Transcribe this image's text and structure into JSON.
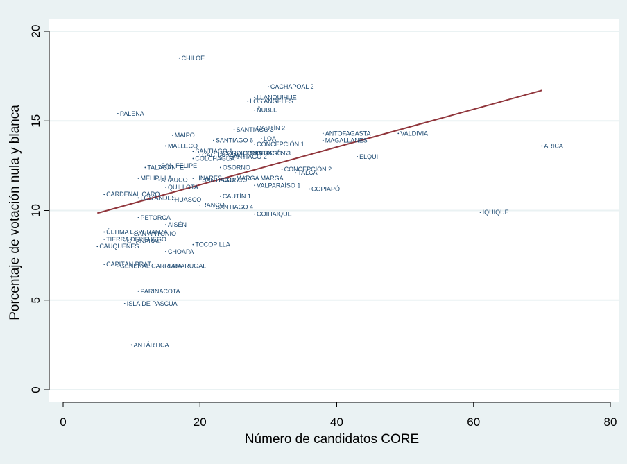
{
  "chart_data": {
    "type": "scatter",
    "xlabel": "Número de candidatos CORE",
    "ylabel": "Porcentaje de votación nula y blanca",
    "xlim": [
      0,
      80
    ],
    "ylim": [
      0,
      20
    ],
    "x_ticks": [
      "0",
      "20",
      "40",
      "60",
      "80"
    ],
    "y_ticks": [
      "0",
      "5",
      "10",
      "15",
      "20"
    ],
    "grid": "horizontal",
    "colors": {
      "background": "#eaf2f3",
      "plot_area": "#ffffff",
      "gridline": "#eaf2f3",
      "markers": "#1a476f",
      "fit_line": "#90353b"
    },
    "points": [
      {
        "label": "CHILOÉ",
        "x": 17,
        "y": 18.5
      },
      {
        "label": "CACHAPOAL 2",
        "x": 30,
        "y": 16.9
      },
      {
        "label": "LLANQUIHUE",
        "x": 28,
        "y": 16.3
      },
      {
        "label": "LOS ANGELES",
        "x": 27,
        "y": 16.1
      },
      {
        "label": "ÑUBLE",
        "x": 28,
        "y": 15.6
      },
      {
        "label": "PALENA",
        "x": 8,
        "y": 15.4
      },
      {
        "label": "CAUTÍN 2",
        "x": 28,
        "y": 14.6
      },
      {
        "label": "SANTIAGO 3",
        "x": 25,
        "y": 14.5
      },
      {
        "label": "ANTOFAGASTA",
        "x": 38,
        "y": 14.3
      },
      {
        "label": "VALDIVIA",
        "x": 49,
        "y": 14.3
      },
      {
        "label": "MAIPO",
        "x": 16,
        "y": 14.2
      },
      {
        "label": "LOA",
        "x": 29,
        "y": 14.0
      },
      {
        "label": "MAGALLANES",
        "x": 38,
        "y": 13.9
      },
      {
        "label": "SANTIAGO 6",
        "x": 22,
        "y": 13.9
      },
      {
        "label": "CONCEPCIÓN 1",
        "x": 28,
        "y": 13.7
      },
      {
        "label": "ARICA",
        "x": 70,
        "y": 13.6
      },
      {
        "label": "MALLECO",
        "x": 15,
        "y": 13.6
      },
      {
        "label": "SANTIAGO 1",
        "x": 19,
        "y": 13.3
      },
      {
        "label": "CORDILLERA",
        "x": 23,
        "y": 13.2
      },
      {
        "label": "CONCEPCIÓN 3",
        "x": 26,
        "y": 13.2
      },
      {
        "label": "SANTIAGO 5",
        "x": 27,
        "y": 13.2
      },
      {
        "label": "CACHAPOAL 1",
        "x": 20,
        "y": 13.1
      },
      {
        "label": "SANTIAGO 2",
        "x": 24,
        "y": 13.0
      },
      {
        "label": "ELQUI",
        "x": 43,
        "y": 13.0
      },
      {
        "label": "COLCHAGUA",
        "x": 19,
        "y": 12.9
      },
      {
        "label": "SAN FELIPE",
        "x": 14,
        "y": 12.5
      },
      {
        "label": "OSORNO",
        "x": 23,
        "y": 12.4
      },
      {
        "label": "TALAGANTE",
        "x": 12,
        "y": 12.4
      },
      {
        "label": "CONCEPCIÓN 2",
        "x": 32,
        "y": 12.3
      },
      {
        "label": "TALCA",
        "x": 34,
        "y": 12.1
      },
      {
        "label": "MELIPILLA",
        "x": 11,
        "y": 11.8
      },
      {
        "label": "LINARES",
        "x": 19,
        "y": 11.8
      },
      {
        "label": "ARAUCO",
        "x": 14,
        "y": 11.7
      },
      {
        "label": "SANTIAGO 7",
        "x": 20,
        "y": 11.7
      },
      {
        "label": "MARGA MARGA",
        "x": 25,
        "y": 11.8
      },
      {
        "label": "CURICÓ",
        "x": 23,
        "y": 11.7
      },
      {
        "label": "VALPARAÍSO 1",
        "x": 28,
        "y": 11.4
      },
      {
        "label": "QUILLOTA",
        "x": 15,
        "y": 11.3
      },
      {
        "label": "COPIAPÓ",
        "x": 36,
        "y": 11.2
      },
      {
        "label": "CARDENAL CARO",
        "x": 6,
        "y": 10.9
      },
      {
        "label": "LOS ANDES",
        "x": 11,
        "y": 10.7
      },
      {
        "label": "CAUTÍN 1",
        "x": 23,
        "y": 10.8
      },
      {
        "label": "HUASCO",
        "x": 16,
        "y": 10.6
      },
      {
        "label": "RANCO",
        "x": 20,
        "y": 10.3
      },
      {
        "label": "SANTIAGO 4",
        "x": 22,
        "y": 10.2
      },
      {
        "label": "IQUIQUE",
        "x": 61,
        "y": 9.9
      },
      {
        "label": "COIHAIQUE",
        "x": 28,
        "y": 9.8
      },
      {
        "label": "PETORCA",
        "x": 11,
        "y": 9.6
      },
      {
        "label": "AISÉN",
        "x": 15,
        "y": 9.2
      },
      {
        "label": "ÚLTIMA ESPERANZA",
        "x": 6,
        "y": 8.8
      },
      {
        "label": "SAN ANTONIO",
        "x": 10,
        "y": 8.7
      },
      {
        "label": "TIERRA DEL FUEGO",
        "x": 6,
        "y": 8.4
      },
      {
        "label": "CHAÑARAL",
        "x": 9,
        "y": 8.3
      },
      {
        "label": "TOCOPILLA",
        "x": 19,
        "y": 8.1
      },
      {
        "label": "CAUQUENES",
        "x": 5,
        "y": 8.0
      },
      {
        "label": "CHOAPA",
        "x": 15,
        "y": 7.7
      },
      {
        "label": "CAPITÁN PRAT",
        "x": 6,
        "y": 7.0
      },
      {
        "label": "GENERAL CARRERA",
        "x": 8,
        "y": 6.9
      },
      {
        "label": "TAMARUGAL",
        "x": 15,
        "y": 6.9
      },
      {
        "label": "PARINACOTA",
        "x": 11,
        "y": 5.5
      },
      {
        "label": "ISLA DE PASCUA",
        "x": 9,
        "y": 4.8
      },
      {
        "label": "ANTÁRTICA",
        "x": 10,
        "y": 2.5
      }
    ],
    "fit_line": {
      "x": [
        5,
        70
      ],
      "y": [
        9.85,
        16.7
      ]
    }
  }
}
